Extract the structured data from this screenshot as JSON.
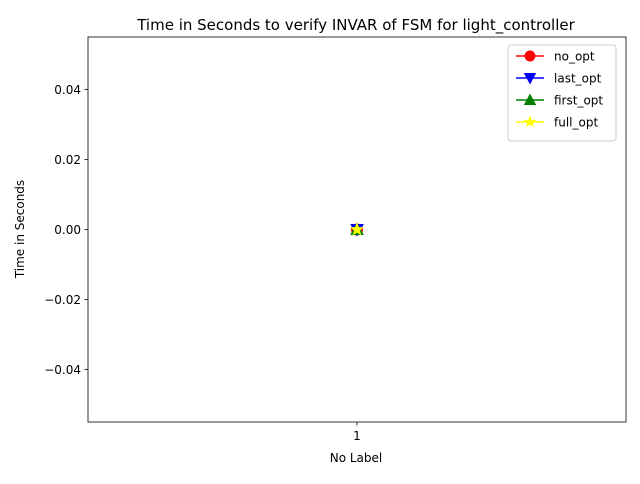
{
  "chart_data": {
    "type": "line",
    "title": "Time in Seconds to verify INVAR of FSM for light_controller",
    "xlabel": "No Label",
    "ylabel": "Time in Seconds",
    "categories": [
      "1"
    ],
    "x": [
      1
    ],
    "xlim": [
      0.55,
      1.45
    ],
    "ylim": [
      -0.055,
      0.055
    ],
    "yticks": [
      -0.04,
      -0.02,
      0.0,
      0.02,
      0.04
    ],
    "ytick_labels": [
      "−0.04",
      "−0.02",
      "0.00",
      "0.02",
      "0.04"
    ],
    "grid": false,
    "legend_position": "top-right",
    "series": [
      {
        "name": "no_opt",
        "values": [
          0
        ],
        "color": "#ff0000",
        "marker": "circle"
      },
      {
        "name": "last_opt",
        "values": [
          0
        ],
        "color": "#0000ff",
        "marker": "triangle-down"
      },
      {
        "name": "first_opt",
        "values": [
          0
        ],
        "color": "#008000",
        "marker": "triangle-up"
      },
      {
        "name": "full_opt",
        "values": [
          0
        ],
        "color": "#ffff00",
        "marker": "star"
      }
    ]
  }
}
